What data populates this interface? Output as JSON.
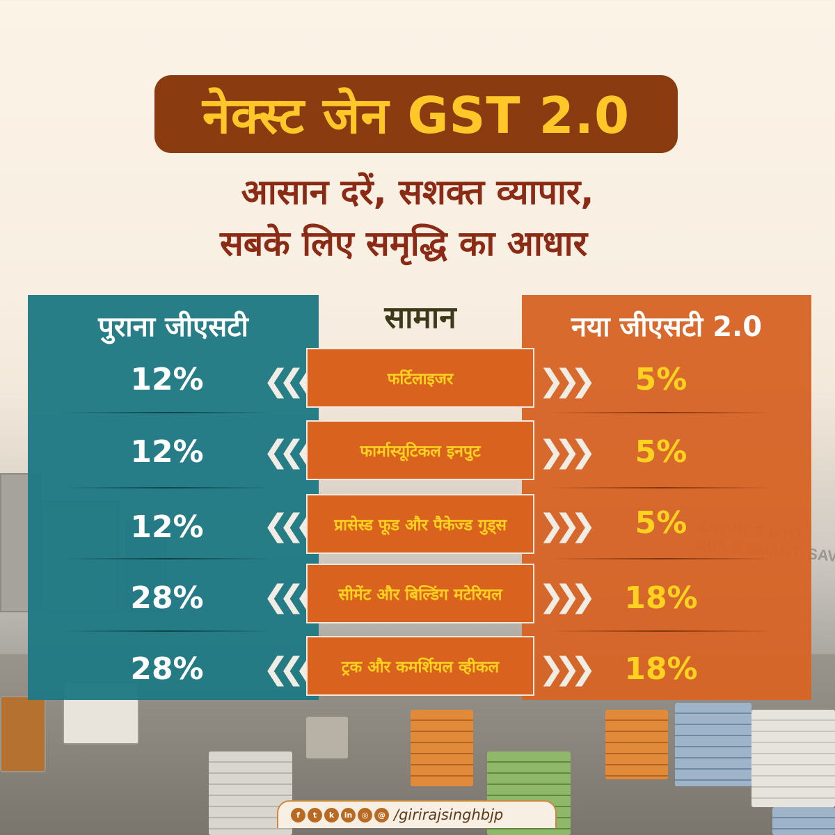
{
  "header": {
    "title": "नेक्स्ट जेन GST 2.0",
    "subtitle_line1": "आसान दरें, सशक्त व्यापार,",
    "subtitle_line2": "सबके लिए समृद्धि का आधार"
  },
  "table": {
    "headers": {
      "old": "पुराना जीएसटी",
      "item": "सामान",
      "new": "नया जीएसटी 2.0"
    },
    "rows": [
      {
        "old": "12%",
        "item": "फर्टिलाइजर",
        "new": "5%"
      },
      {
        "old": "12%",
        "item": "फार्मास्यूटिकल इनपुट",
        "new": "5%"
      },
      {
        "old": "12%",
        "item": "प्रासेस्ड फूड और पैकेज्ड गुड्स",
        "new": "5%"
      },
      {
        "old": "28%",
        "item": "सीमेंट और बिल्डिंग मटेरियल",
        "new": "18%"
      },
      {
        "old": "28%",
        "item": "ट्रक और कमर्शियल व्हीकल",
        "new": "18%"
      }
    ]
  },
  "background_sign": "SAVINGS UTO\nBUILD SMART, SAVE BIG WITH GST!",
  "footer": {
    "icons": [
      "facebook-icon",
      "twitter-icon",
      "koo-icon",
      "linkedin-icon",
      "instagram-icon",
      "threads-icon"
    ],
    "handle": "/girirajsinghbjp"
  },
  "colors": {
    "title_bg": "#8a3c10",
    "title_text": "#ffc727",
    "subtitle": "#8b2a15",
    "old_panel": "#207a84",
    "new_panel": "#d66426",
    "new_value": "#ffd21f"
  }
}
